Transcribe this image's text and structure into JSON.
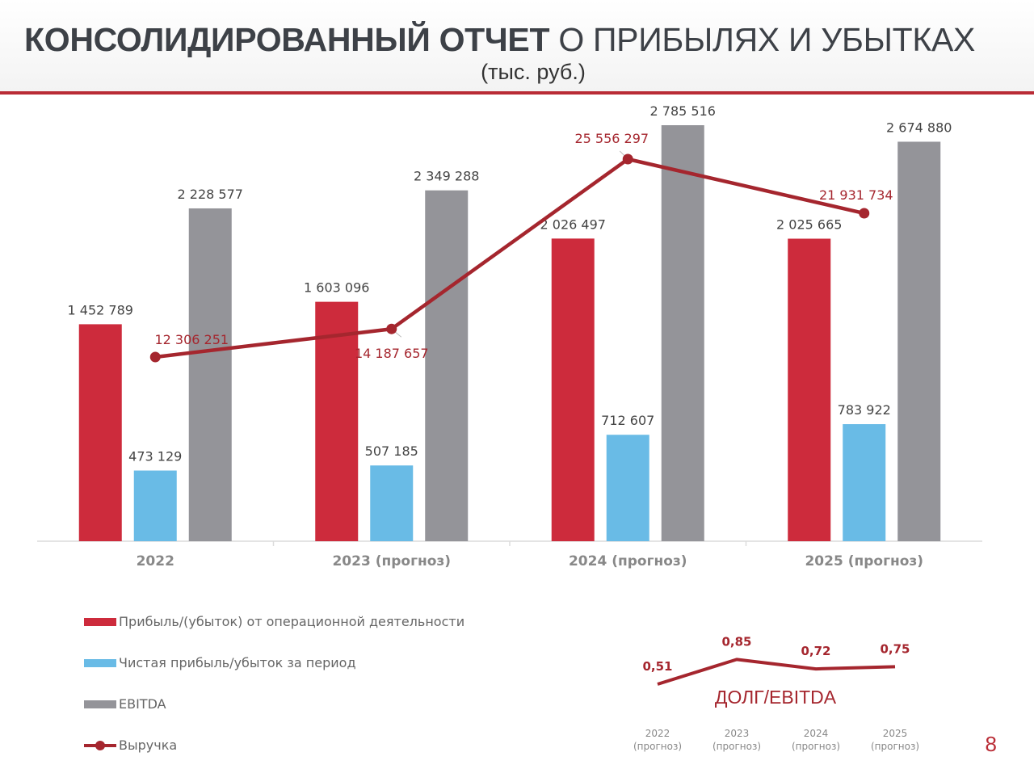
{
  "title": {
    "bold": "КОНСОЛИДИРОВАННЫЙ ОТЧЕТ",
    "rest": "О ПРИБЫЛЯХ И УБЫТКАХ",
    "subtitle": "(тыс. руб.)"
  },
  "page_number": "8",
  "colors": {
    "operating": "#cd2b3c",
    "net": "#69bbe6",
    "ebitda": "#949499",
    "revenue": "#a5262e",
    "title": "#3d4147"
  },
  "chart_data": [
    {
      "type": "bar",
      "categories": [
        "2022",
        "2023 (прогноз)",
        "2024 (прогноз)",
        "2025 (прогноз)"
      ],
      "series": [
        {
          "name": "Прибыль/(убыток) от операционной деятельности",
          "type": "bar",
          "values": [
            1452789,
            1603096,
            2026497,
            2025665
          ],
          "labels": [
            "1 452 789",
            "1 603 096",
            "2 026 497",
            "2 025 665"
          ]
        },
        {
          "name": "Чистая прибыль/убыток за период",
          "type": "bar",
          "values": [
            473129,
            507185,
            712607,
            783922
          ],
          "labels": [
            "473 129",
            "507 185",
            "712 607",
            "783 922"
          ]
        },
        {
          "name": "EBITDA",
          "type": "bar",
          "values": [
            2228577,
            2349288,
            2785516,
            2674880
          ],
          "labels": [
            "2 228 577",
            "2 349 288",
            "2 785 516",
            "2 674 880"
          ]
        },
        {
          "name": "Выручка",
          "type": "line",
          "values": [
            12306251,
            14187657,
            25556297,
            21931734
          ],
          "labels": [
            "12 306 251",
            "14 187 657",
            "25 556 297",
            "21 931 734"
          ]
        }
      ],
      "legend_position": "bottom-left",
      "grid": false
    },
    {
      "type": "line",
      "title": "ДОЛГ/EBITDA",
      "categories": [
        "2022 (прогноз)",
        "2023 (прогноз)",
        "2024 (прогноз)",
        "2025 (прогноз)"
      ],
      "category_lines": [
        [
          "2022",
          "(прогноз)"
        ],
        [
          "2023",
          "(прогноз)"
        ],
        [
          "2024",
          "(прогноз)"
        ],
        [
          "2025",
          "(прогноз)"
        ]
      ],
      "series": [
        {
          "values": [
            0.51,
            0.85,
            0.72,
            0.75
          ],
          "labels": [
            "0,51",
            "0,85",
            "0,72",
            "0,75"
          ]
        }
      ]
    }
  ]
}
